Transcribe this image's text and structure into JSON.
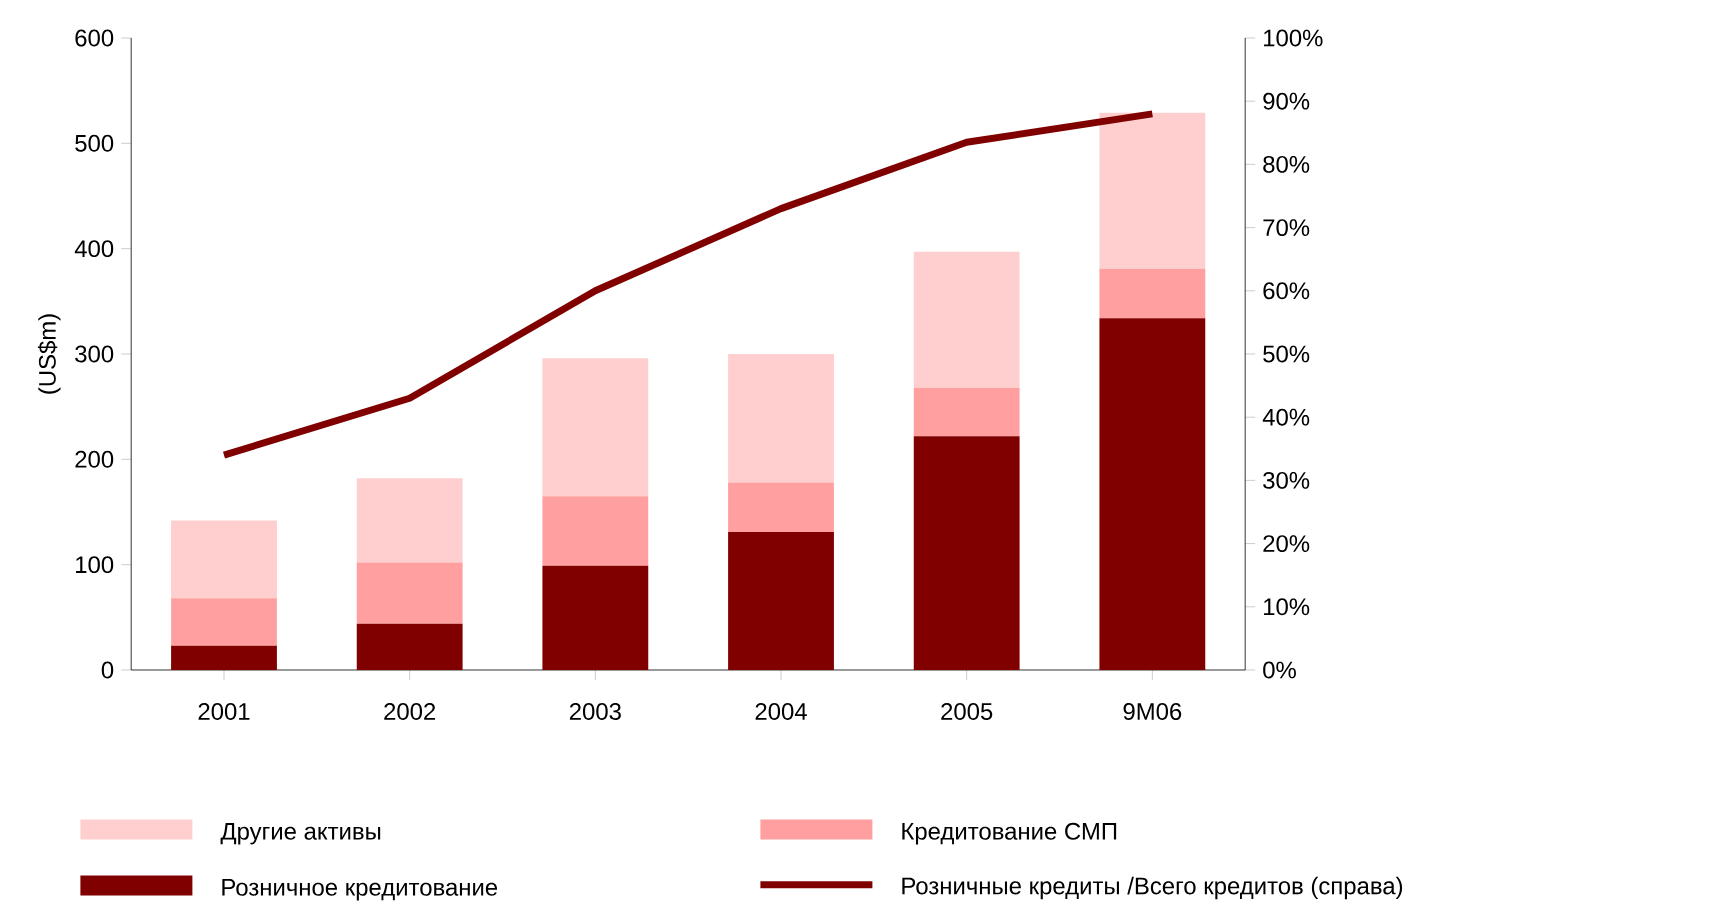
{
  "chart_data": {
    "type": "bar",
    "stacked": true,
    "ylabel": "(US$m)",
    "categories": [
      "2001",
      "2002",
      "2003",
      "2004",
      "2005",
      "9M06"
    ],
    "ylim": [
      0,
      600
    ],
    "yticks": [
      0,
      100,
      200,
      300,
      400,
      500,
      600
    ],
    "y2lim": [
      0,
      100
    ],
    "y2ticks": [
      {
        "value": 0,
        "label": "0%"
      },
      {
        "value": 10,
        "label": "10%"
      },
      {
        "value": 20,
        "label": "20%"
      },
      {
        "value": 30,
        "label": "30%"
      },
      {
        "value": 40,
        "label": "40%"
      },
      {
        "value": 50,
        "label": "50%"
      },
      {
        "value": 60,
        "label": "60%"
      },
      {
        "value": 70,
        "label": "70%"
      },
      {
        "value": 80,
        "label": "80%"
      },
      {
        "value": 90,
        "label": "90%"
      },
      {
        "value": 100,
        "label": "100%"
      }
    ],
    "legend": "bottom",
    "grid": false,
    "series": [
      {
        "name": "Розничное кредитование",
        "color": "#800000",
        "values": [
          23,
          44,
          99,
          131,
          222,
          334
        ]
      },
      {
        "name": "Кредитование СМП",
        "color": "#ff9f9f",
        "values": [
          45,
          58,
          66,
          47,
          46,
          47
        ]
      },
      {
        "name": "Другие активы",
        "color": "#ffcfcf",
        "values": [
          74,
          80,
          131,
          122,
          129,
          148
        ]
      },
      {
        "name": "Розничные кредиты /Всего кредитов (справа)",
        "type": "line",
        "axis": "y2",
        "color": "#800000",
        "values": [
          34,
          43,
          60,
          73,
          83.5,
          88
        ]
      }
    ]
  }
}
